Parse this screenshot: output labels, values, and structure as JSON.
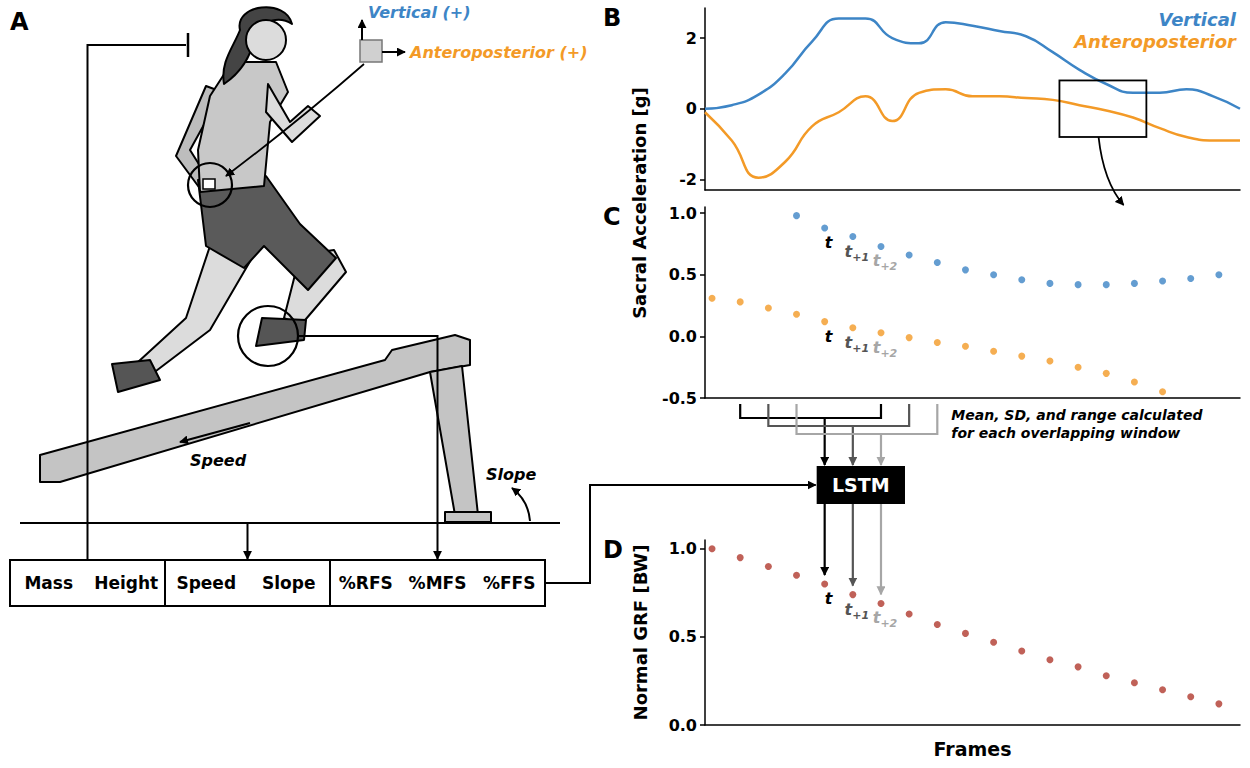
{
  "panel_a": {
    "letter": "A",
    "sensor_axes": [
      {
        "label": "Vertical (+)",
        "color": "#3d85c6"
      },
      {
        "label": "Anteroposterior (+)",
        "color": "#f39a27"
      }
    ],
    "treadmill": {
      "speed_label": "Speed",
      "slope_label": "Slope"
    },
    "inputs": [
      [
        "Mass",
        "Height"
      ],
      [
        "Speed",
        "Slope"
      ],
      [
        "%RFS",
        "%MFS",
        "%FFS"
      ]
    ]
  },
  "model": {
    "label": "LSTM"
  },
  "window_note": "Mean, SD, and range calculated for each overlapping window",
  "shared_ylabel": "Sacral Acceleration [g]",
  "chart_data": [
    {
      "letter": "B",
      "type": "line",
      "line_style": "solid",
      "x": [
        0,
        2,
        4,
        6,
        8,
        10,
        12,
        14,
        16,
        18,
        20,
        22,
        24,
        26,
        28,
        30,
        32,
        34,
        36,
        38,
        40
      ],
      "series": [
        {
          "name": "Vertical",
          "color": "#3d85c6",
          "values": [
            0,
            0.1,
            0.4,
            1.0,
            1.9,
            2.55,
            2.55,
            2.0,
            1.85,
            2.45,
            2.35,
            2.2,
            2.05,
            1.6,
            1.1,
            0.7,
            0.45,
            0.45,
            0.55,
            0.35,
            0
          ]
        },
        {
          "name": "Anteroposterior",
          "color": "#f39a27",
          "values": [
            -0.1,
            -0.9,
            -1.95,
            -1.5,
            -0.5,
            -0.1,
            0.35,
            -0.35,
            0.45,
            0.55,
            0.35,
            0.35,
            0.3,
            0.25,
            0.1,
            -0.05,
            -0.25,
            -0.55,
            -0.8,
            -0.9,
            -0.9
          ]
        }
      ],
      "xlim": [
        0,
        40
      ],
      "ylim": [
        -2.3,
        2.85
      ],
      "yticks": [
        -2,
        0,
        2
      ],
      "tick_labels": "y",
      "legend": "upper right",
      "zoom_box": {
        "x": [
          26.5,
          33
        ],
        "y": [
          -0.8,
          0.8
        ]
      }
    },
    {
      "letter": "C",
      "type": "scatter",
      "marker": "circle",
      "x": [
        0,
        1,
        2,
        3,
        4,
        5,
        6,
        7,
        8,
        9,
        10,
        11,
        12,
        13,
        14,
        15,
        16,
        17,
        18
      ],
      "series": [
        {
          "color": "#3d85c6",
          "values": [
            null,
            null,
            null,
            0.98,
            0.88,
            0.81,
            0.73,
            0.66,
            0.6,
            0.54,
            0.5,
            0.46,
            0.43,
            0.42,
            0.42,
            0.43,
            0.45,
            0.47,
            0.5
          ]
        },
        {
          "color": "#f39a27",
          "values": [
            0.31,
            0.28,
            0.23,
            0.18,
            0.12,
            0.07,
            0.03,
            -0.01,
            -0.05,
            -0.08,
            -0.12,
            -0.16,
            -0.2,
            -0.25,
            -0.3,
            -0.37,
            -0.45,
            null,
            null
          ]
        }
      ],
      "xlim": [
        -0.25,
        18.75
      ],
      "ylim": [
        -0.5,
        1.05
      ],
      "yticks": [
        -0.5,
        {
          "value": 0,
          "label": "0.0"
        },
        0.5,
        {
          "value": 1,
          "label": "1.0"
        }
      ],
      "tick_labels": "y",
      "time_markers": [
        {
          "x": 4,
          "label": "t"
        },
        {
          "x": 5,
          "label": "t",
          "sub": "+1"
        },
        {
          "x": 6,
          "label": "t",
          "sub": "+2"
        }
      ],
      "windows": [
        [
          1,
          6
        ],
        [
          2,
          7
        ],
        [
          3,
          8
        ]
      ]
    },
    {
      "letter": "D",
      "type": "scatter",
      "marker": "circle",
      "x": [
        0,
        1,
        2,
        3,
        4,
        5,
        6,
        7,
        8,
        9,
        10,
        11,
        12,
        13,
        14,
        15,
        16,
        17,
        18
      ],
      "series": [
        {
          "color": "#b03a2e",
          "values": [
            1.0,
            0.95,
            0.9,
            0.85,
            0.8,
            0.74,
            0.69,
            0.63,
            0.57,
            0.52,
            0.47,
            0.42,
            0.37,
            0.33,
            0.28,
            0.24,
            0.2,
            0.16,
            0.12
          ]
        }
      ],
      "xlim": [
        -0.25,
        18.75
      ],
      "ylim": [
        0,
        1.05
      ],
      "yticks": [
        {
          "value": 0,
          "label": "0.0"
        },
        0.5,
        {
          "value": 1,
          "label": "1.0"
        }
      ],
      "tick_labels": "y",
      "ylabel": "Normal GRF [BW]",
      "xlabel": "Frames",
      "time_markers": [
        {
          "x": 4,
          "label": "t"
        },
        {
          "x": 5,
          "label": "t",
          "sub": "+1"
        },
        {
          "x": 6,
          "label": "t",
          "sub": "+2"
        }
      ]
    }
  ]
}
